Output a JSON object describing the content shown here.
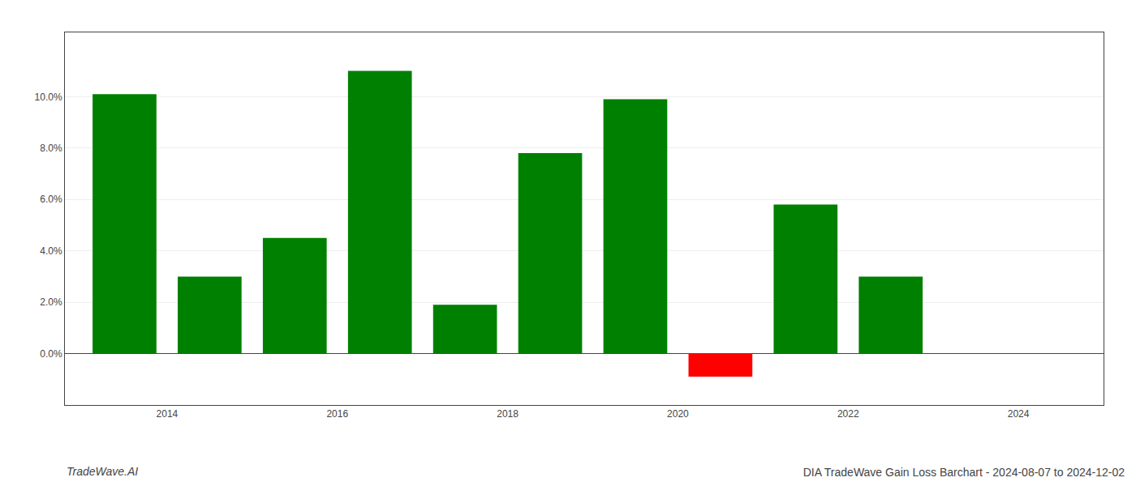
{
  "chart_data": {
    "type": "bar",
    "title": "DIA TradeWave Gain Loss Barchart - 2024-08-07 to 2024-12-02",
    "annotations": [
      "TradeWave.AI"
    ],
    "x": [
      2013.5,
      2014.5,
      2015.5,
      2016.5,
      2017.5,
      2018.5,
      2019.5,
      2020.5,
      2021.5,
      2022.5
    ],
    "values": [
      0.101,
      0.03,
      0.045,
      0.11,
      0.019,
      0.078,
      0.099,
      -0.009,
      0.058,
      0.03
    ],
    "colors": [
      "#008000",
      "#008000",
      "#008000",
      "#008000",
      "#008000",
      "#008000",
      "#008000",
      "#ff0000",
      "#008000",
      "#008000"
    ],
    "xlim": [
      2012.8,
      2025.0
    ],
    "xticks": [
      2014,
      2016,
      2018,
      2020,
      2022,
      2024
    ],
    "ylim": [
      -0.02,
      0.125
    ],
    "yticks": [
      {
        "value": 0.0,
        "label": "0.0%"
      },
      {
        "value": 0.02,
        "label": "2.0%"
      },
      {
        "value": 0.04,
        "label": "4.0%"
      },
      {
        "value": 0.06,
        "label": "6.0%"
      },
      {
        "value": 0.08,
        "label": "8.0%"
      },
      {
        "value": 0.1,
        "label": "10.0%"
      }
    ],
    "grid": true
  }
}
